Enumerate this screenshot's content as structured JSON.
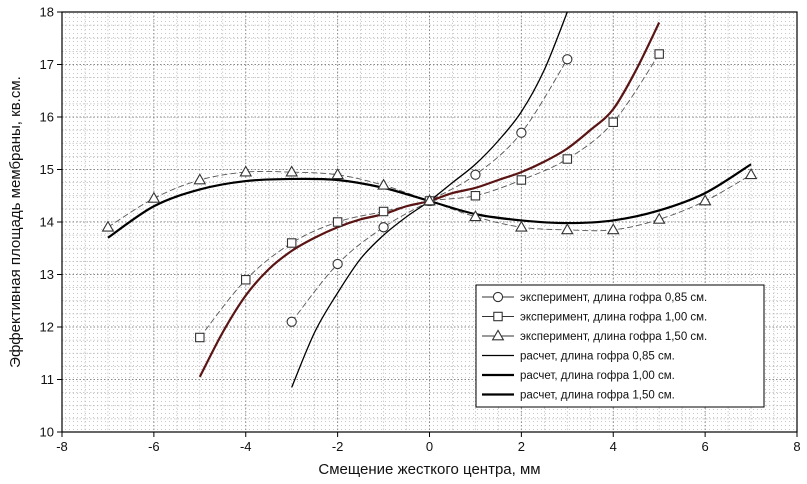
{
  "chart_data": {
    "type": "line",
    "xlabel": "Смещение жесткого центра, мм",
    "ylabel": "Эффективная площадь мембраны, кв.см.",
    "xlim": [
      -8,
      8
    ],
    "ylim": [
      10,
      18
    ],
    "xticks": [
      -8,
      -6,
      -4,
      -2,
      0,
      2,
      4,
      6,
      8
    ],
    "yticks": [
      10,
      11,
      12,
      13,
      14,
      15,
      16,
      17,
      18
    ],
    "grid": true,
    "legend_position": "bottom-right",
    "series": [
      {
        "name": "эксперимент, длина гофра 0,85 см.",
        "kind": "experiment",
        "marker": "circle",
        "color": "#333333",
        "points": [
          [
            -3,
            12.1
          ],
          [
            -2,
            13.2
          ],
          [
            -1,
            13.9
          ],
          [
            0,
            14.4
          ],
          [
            1,
            14.9
          ],
          [
            2,
            15.7
          ],
          [
            3,
            17.1
          ]
        ]
      },
      {
        "name": "эксперимент, длина гофра 1,00 см.",
        "kind": "experiment",
        "marker": "square",
        "color": "#333333",
        "points": [
          [
            -5,
            11.8
          ],
          [
            -4,
            12.9
          ],
          [
            -3,
            13.6
          ],
          [
            -2,
            14.0
          ],
          [
            -1,
            14.2
          ],
          [
            0,
            14.4
          ],
          [
            1,
            14.5
          ],
          [
            2,
            14.8
          ],
          [
            3,
            15.2
          ],
          [
            4,
            15.9
          ],
          [
            5,
            17.2
          ]
        ]
      },
      {
        "name": "эксперимент, длина гофра 1,50 см.",
        "kind": "experiment",
        "marker": "triangle",
        "color": "#333333",
        "points": [
          [
            -7,
            13.9
          ],
          [
            -6,
            14.45
          ],
          [
            -5,
            14.8
          ],
          [
            -4,
            14.95
          ],
          [
            -3,
            14.95
          ],
          [
            -2,
            14.9
          ],
          [
            -1,
            14.7
          ],
          [
            0,
            14.4
          ],
          [
            1,
            14.1
          ],
          [
            2,
            13.9
          ],
          [
            3,
            13.85
          ],
          [
            4,
            13.85
          ],
          [
            5,
            14.05
          ],
          [
            6,
            14.4
          ],
          [
            7,
            14.9
          ]
        ]
      },
      {
        "name": "расчет, длина гофра 0,85 см.",
        "kind": "calculation",
        "color": "#000000",
        "points": [
          [
            -3,
            10.85
          ],
          [
            -2.5,
            11.9
          ],
          [
            -2,
            12.65
          ],
          [
            -1.5,
            13.3
          ],
          [
            -1,
            13.75
          ],
          [
            -0.5,
            14.1
          ],
          [
            0,
            14.4
          ],
          [
            0.5,
            14.75
          ],
          [
            1,
            15.1
          ],
          [
            1.5,
            15.55
          ],
          [
            2,
            16.1
          ],
          [
            2.5,
            16.9
          ],
          [
            3,
            18.0
          ]
        ]
      },
      {
        "name": "расчет, длина гофра 1,00 см.",
        "kind": "calculation",
        "color": "#5a1414",
        "points": [
          [
            -5,
            11.05
          ],
          [
            -4.5,
            11.9
          ],
          [
            -4,
            12.6
          ],
          [
            -3.5,
            13.1
          ],
          [
            -3,
            13.45
          ],
          [
            -2.5,
            13.7
          ],
          [
            -2,
            13.9
          ],
          [
            -1.5,
            14.05
          ],
          [
            -1,
            14.15
          ],
          [
            -0.5,
            14.3
          ],
          [
            0,
            14.4
          ],
          [
            0.5,
            14.55
          ],
          [
            1,
            14.65
          ],
          [
            1.5,
            14.8
          ],
          [
            2,
            14.95
          ],
          [
            2.5,
            15.15
          ],
          [
            3,
            15.4
          ],
          [
            3.5,
            15.75
          ],
          [
            4,
            16.15
          ],
          [
            4.5,
            16.9
          ],
          [
            5,
            17.8
          ]
        ]
      },
      {
        "name": "расчет, длина гофра 1,50 см.",
        "kind": "calculation",
        "color": "#000000",
        "points": [
          [
            -7,
            13.7
          ],
          [
            -6,
            14.3
          ],
          [
            -5,
            14.62
          ],
          [
            -4,
            14.78
          ],
          [
            -3,
            14.82
          ],
          [
            -2,
            14.8
          ],
          [
            -1,
            14.65
          ],
          [
            0,
            14.4
          ],
          [
            1,
            14.15
          ],
          [
            2,
            14.03
          ],
          [
            3,
            13.98
          ],
          [
            4,
            14.03
          ],
          [
            5,
            14.22
          ],
          [
            6,
            14.55
          ],
          [
            7,
            15.1
          ]
        ]
      }
    ]
  },
  "legend": {
    "items": [
      "эксперимент, длина гофра 0,85 см.",
      "эксперимент, длина гофра 1,00 см.",
      "эксперимент, длина гофра 1,50 см.",
      "расчет, длина гофра 0,85 см.",
      "расчет, длина гофра 1,00 см.",
      "расчет, длина гофра 1,50 см."
    ]
  }
}
